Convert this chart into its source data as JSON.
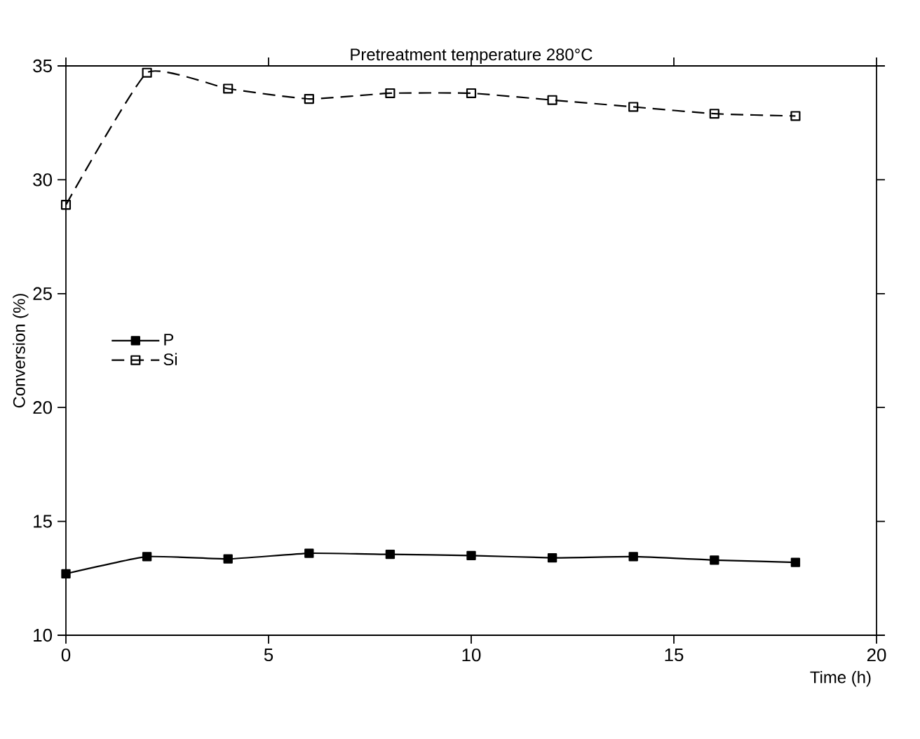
{
  "chart_data": {
    "type": "line",
    "title": "Pretreatment  temperature  280°C",
    "xlabel": "Time (h)",
    "ylabel": "Conversion (%)",
    "xlim": [
      0,
      20
    ],
    "xticks": [
      0,
      5,
      10,
      15,
      20
    ],
    "ylim": [
      10,
      35
    ],
    "yticks": [
      10,
      15,
      20,
      25,
      30,
      35
    ],
    "grid": false,
    "legend": "left",
    "series": [
      {
        "name": "P",
        "color": "#000000",
        "marker": "square",
        "line_style": "solid",
        "x": [
          0,
          2,
          4,
          6,
          8,
          10,
          12,
          14,
          16,
          18
        ],
        "values": [
          12.7,
          13.45,
          13.35,
          13.6,
          13.55,
          13.5,
          13.4,
          13.45,
          13.3,
          13.2
        ]
      },
      {
        "name": "Si",
        "color": "#000000",
        "marker": "square_open",
        "line_style": "dashed",
        "x": [
          0,
          2,
          4,
          6,
          8,
          10,
          12,
          14,
          16,
          18
        ],
        "values": [
          28.9,
          34.7,
          34.0,
          33.55,
          33.8,
          33.8,
          33.5,
          33.2,
          32.9,
          32.8
        ]
      }
    ]
  }
}
